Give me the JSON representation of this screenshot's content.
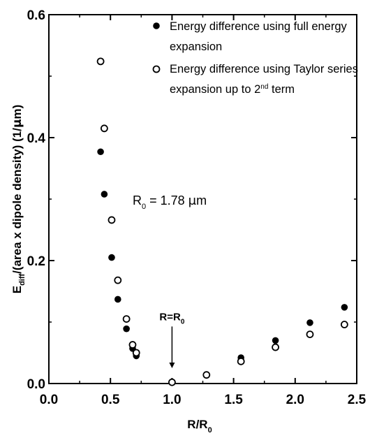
{
  "chart_data": {
    "type": "scatter",
    "xlabel": {
      "main": "R/R",
      "sub": "0"
    },
    "ylabel": {
      "p1": "E",
      "sub": "diff",
      "p2": "/(area x dipole density) (1/",
      "mu": "μ",
      "p3": "m)"
    },
    "xlim": [
      0.0,
      2.5
    ],
    "ylim": [
      0.0,
      0.6
    ],
    "x_ticks": [
      "0.0",
      "0.5",
      "1.0",
      "1.5",
      "2.0",
      "2.5"
    ],
    "y_ticks": [
      "0.0",
      "0.2",
      "0.4",
      "0.6"
    ],
    "grid": false,
    "legend_placement": "top-right",
    "series": [
      {
        "name": "Energy difference using full energy expansion",
        "marker": "filled-circle",
        "color": "#000000",
        "points": [
          [
            0.42,
            0.377
          ],
          [
            0.45,
            0.308
          ],
          [
            0.51,
            0.205
          ],
          [
            0.56,
            0.137
          ],
          [
            0.63,
            0.089
          ],
          [
            0.68,
            0.057
          ],
          [
            0.71,
            0.045
          ],
          [
            1.56,
            0.042
          ],
          [
            1.84,
            0.07
          ],
          [
            2.12,
            0.099
          ],
          [
            2.4,
            0.124
          ]
        ]
      },
      {
        "name": "Energy difference using Taylor series expansion up to 2nd term",
        "marker": "open-circle",
        "color": "#000000",
        "points": [
          [
            0.42,
            0.524
          ],
          [
            0.45,
            0.415
          ],
          [
            0.51,
            0.266
          ],
          [
            0.56,
            0.168
          ],
          [
            0.63,
            0.105
          ],
          [
            0.68,
            0.063
          ],
          [
            0.71,
            0.05
          ],
          [
            1.0,
            0.002
          ],
          [
            1.28,
            0.014
          ],
          [
            1.56,
            0.036
          ],
          [
            1.84,
            0.059
          ],
          [
            2.12,
            0.08
          ],
          [
            2.4,
            0.096
          ]
        ]
      }
    ],
    "legend_lines": [
      [
        "Energy difference using full energy",
        "expansion"
      ],
      [
        "Energy difference using Taylor series",
        "expansion up to 2",
        "nd",
        " term"
      ]
    ],
    "annotations": {
      "r0_value": {
        "p1": "R",
        "sub": "0",
        "p2": " = 1.78 ",
        "mu": "μ",
        "p3": "m",
        "x": 0.68,
        "y": 0.291
      },
      "r_eq": {
        "p1": "R=R",
        "sub": "0",
        "x": 1.0,
        "y": 0.103
      }
    }
  }
}
